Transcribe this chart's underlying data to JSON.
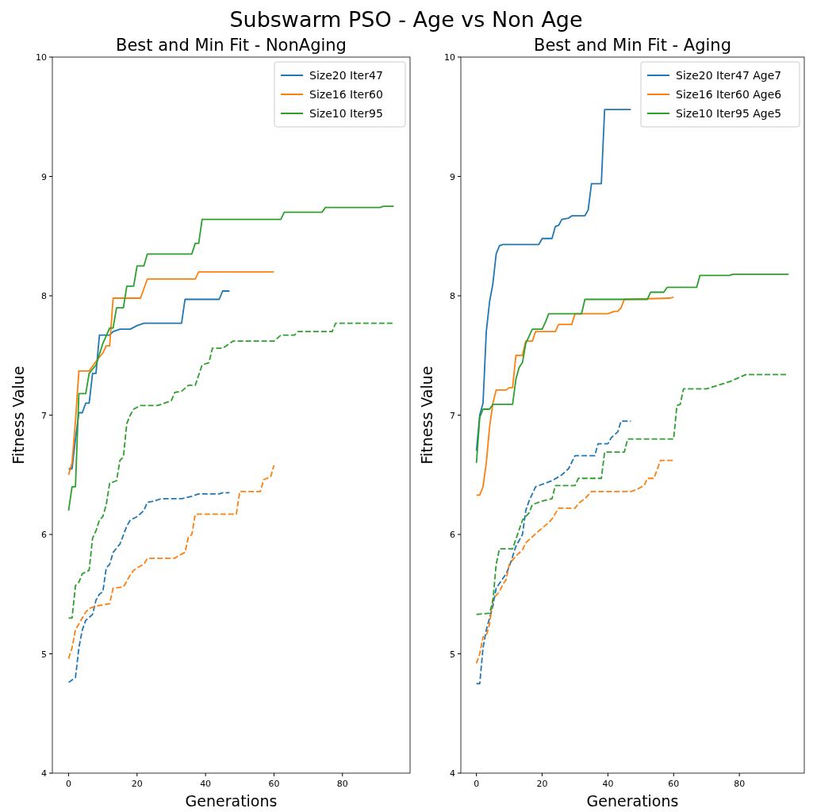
{
  "chart_data": [
    {
      "type": "line",
      "title": "Best and Min Fit - NonAging",
      "xlabel": "Generations",
      "ylabel": "Fitness Value",
      "annotations": [
        "Subswarm PSO - Age vs Non Age"
      ],
      "xlim": [
        -4.75,
        99.75
      ],
      "xticks": [
        0,
        20,
        40,
        60,
        80
      ],
      "ylim": [
        4,
        10
      ],
      "yticks": [
        4,
        5,
        6,
        7,
        8,
        9,
        10
      ],
      "legend": "top right",
      "grid": false,
      "marker": "none",
      "series": [
        {
          "name": "Size20 Iter47",
          "color": "#1f77b4",
          "line_style": "solid",
          "x": [
            0,
            1,
            2,
            3,
            4,
            5,
            6,
            7,
            8,
            9,
            12,
            13,
            15,
            18,
            20,
            22,
            33,
            34,
            44,
            45,
            47
          ],
          "values": [
            6.55,
            6.55,
            6.8,
            7.02,
            7.02,
            7.1,
            7.1,
            7.35,
            7.35,
            7.67,
            7.67,
            7.7,
            7.72,
            7.72,
            7.75,
            7.77,
            7.77,
            7.97,
            7.97,
            8.04,
            8.04
          ]
        },
        {
          "name": "Size16 Iter60",
          "color": "#ff7f0e",
          "line_style": "solid",
          "x": [
            0,
            1,
            2,
            3,
            6,
            8,
            10,
            11,
            12,
            13,
            21,
            23,
            37,
            38,
            60
          ],
          "values": [
            6.5,
            6.6,
            6.95,
            7.37,
            7.37,
            7.45,
            7.52,
            7.58,
            7.58,
            7.98,
            7.98,
            8.14,
            8.14,
            8.2,
            8.2
          ]
        },
        {
          "name": "Size10 Iter95",
          "color": "#2ca02c",
          "line_style": "solid",
          "x": [
            0,
            1,
            2,
            3,
            5,
            6,
            8,
            10,
            12,
            13,
            14,
            16,
            17,
            19,
            20,
            22,
            23,
            36,
            37,
            38,
            39,
            62,
            63,
            74,
            75,
            91,
            92,
            95
          ],
          "values": [
            6.2,
            6.4,
            6.4,
            7.18,
            7.18,
            7.35,
            7.42,
            7.6,
            7.73,
            7.73,
            7.9,
            7.9,
            8.08,
            8.08,
            8.25,
            8.25,
            8.35,
            8.35,
            8.44,
            8.44,
            8.64,
            8.64,
            8.7,
            8.7,
            8.74,
            8.74,
            8.75,
            8.75
          ]
        },
        {
          "color": "#1f77b4",
          "line_style": "dashed",
          "x": [
            0,
            1,
            2,
            3,
            4,
            5,
            7,
            8,
            9,
            10,
            11,
            12,
            13,
            15,
            17,
            18,
            20,
            22,
            23,
            25,
            27,
            33,
            36,
            38,
            44,
            45,
            47
          ],
          "values": [
            4.76,
            4.78,
            4.8,
            5.05,
            5.2,
            5.28,
            5.33,
            5.45,
            5.5,
            5.52,
            5.72,
            5.75,
            5.85,
            5.92,
            6.07,
            6.12,
            6.15,
            6.2,
            6.27,
            6.28,
            6.3,
            6.3,
            6.32,
            6.34,
            6.34,
            6.35,
            6.35
          ]
        },
        {
          "color": "#ff7f0e",
          "line_style": "dashed",
          "x": [
            0,
            1,
            2,
            3,
            5,
            6,
            8,
            12,
            13,
            16,
            18,
            19,
            20,
            22,
            23,
            31,
            32,
            34,
            35,
            36,
            37,
            49,
            50,
            56,
            57,
            59,
            60
          ],
          "values": [
            4.96,
            5.05,
            5.2,
            5.25,
            5.35,
            5.38,
            5.4,
            5.42,
            5.55,
            5.56,
            5.66,
            5.7,
            5.72,
            5.75,
            5.8,
            5.8,
            5.82,
            5.85,
            5.98,
            6.0,
            6.17,
            6.17,
            6.36,
            6.36,
            6.46,
            6.48,
            6.58
          ]
        },
        {
          "color": "#2ca02c",
          "line_style": "dashed",
          "x": [
            0,
            1,
            2,
            3,
            4,
            6,
            7,
            8,
            9,
            10,
            11,
            12,
            14,
            15,
            16,
            17,
            18,
            19,
            21,
            26,
            28,
            30,
            31,
            33,
            35,
            37,
            39,
            41,
            42,
            45,
            47,
            48,
            60,
            62,
            66,
            67,
            77,
            78,
            95
          ],
          "values": [
            5.3,
            5.3,
            5.57,
            5.6,
            5.67,
            5.7,
            5.97,
            6.03,
            6.12,
            6.15,
            6.25,
            6.43,
            6.45,
            6.62,
            6.65,
            6.93,
            7.0,
            7.05,
            7.08,
            7.08,
            7.1,
            7.12,
            7.19,
            7.2,
            7.25,
            7.25,
            7.42,
            7.44,
            7.56,
            7.56,
            7.6,
            7.62,
            7.62,
            7.67,
            7.67,
            7.7,
            7.7,
            7.77,
            7.77
          ]
        }
      ]
    },
    {
      "type": "line",
      "title": "Best and Min Fit - Aging",
      "xlabel": "Generations",
      "ylabel": "Fitness Value",
      "xlim": [
        -4.75,
        99.75
      ],
      "xticks": [
        0,
        20,
        40,
        60,
        80
      ],
      "ylim": [
        4,
        10
      ],
      "yticks": [
        4,
        5,
        6,
        7,
        8,
        9,
        10
      ],
      "legend": "top right",
      "grid": false,
      "marker": "none",
      "series": [
        {
          "name": "Size20 Iter47 Age7",
          "color": "#1f77b4",
          "line_style": "solid",
          "x": [
            0,
            1,
            2,
            3,
            4,
            5,
            6,
            7,
            8,
            19,
            20,
            23,
            24,
            25,
            26,
            28,
            29,
            33,
            34,
            35,
            38,
            39,
            47
          ],
          "values": [
            6.7,
            7.0,
            7.1,
            7.7,
            7.95,
            8.1,
            8.35,
            8.42,
            8.43,
            8.43,
            8.48,
            8.48,
            8.58,
            8.59,
            8.64,
            8.65,
            8.67,
            8.67,
            8.72,
            8.94,
            8.94,
            9.56,
            9.56
          ]
        },
        {
          "name": "Size16 Iter60 Age6",
          "color": "#ff7f0e",
          "line_style": "solid",
          "x": [
            0,
            1,
            2,
            3,
            4,
            5,
            6,
            9,
            10,
            11,
            12,
            14,
            15,
            17,
            18,
            24,
            25,
            29,
            30,
            40,
            42,
            43,
            44,
            45,
            59,
            60
          ],
          "values": [
            6.33,
            6.33,
            6.4,
            6.6,
            6.9,
            7.1,
            7.21,
            7.21,
            7.23,
            7.23,
            7.5,
            7.5,
            7.62,
            7.62,
            7.7,
            7.7,
            7.76,
            7.76,
            7.85,
            7.85,
            7.87,
            7.87,
            7.9,
            7.97,
            7.98,
            7.99
          ]
        },
        {
          "name": "Size10 Iter95 Age5",
          "color": "#2ca02c",
          "line_style": "solid",
          "x": [
            0,
            1,
            2,
            4,
            5,
            11,
            12,
            13,
            14,
            15,
            16,
            17,
            20,
            21,
            22,
            32,
            33,
            52,
            53,
            57,
            58,
            67,
            68,
            77,
            78,
            95
          ],
          "values": [
            6.6,
            6.98,
            7.05,
            7.05,
            7.09,
            7.09,
            7.3,
            7.4,
            7.44,
            7.6,
            7.66,
            7.72,
            7.72,
            7.78,
            7.85,
            7.85,
            7.97,
            7.97,
            8.03,
            8.03,
            8.07,
            8.07,
            8.17,
            8.17,
            8.18,
            8.18
          ]
        },
        {
          "color": "#1f77b4",
          "line_style": "dashed",
          "x": [
            0,
            1,
            2,
            3,
            5,
            6,
            9,
            10,
            12,
            14,
            15,
            16,
            18,
            21,
            23,
            26,
            28,
            30,
            36,
            37,
            40,
            41,
            43,
            44,
            47
          ],
          "values": [
            4.75,
            4.75,
            5.05,
            5.2,
            5.4,
            5.55,
            5.67,
            5.73,
            5.9,
            6.0,
            6.2,
            6.28,
            6.4,
            6.43,
            6.45,
            6.5,
            6.55,
            6.66,
            6.66,
            6.76,
            6.76,
            6.81,
            6.86,
            6.95,
            6.95
          ]
        },
        {
          "color": "#ff7f0e",
          "line_style": "dashed",
          "x": [
            0,
            1,
            2,
            3,
            4,
            5,
            7,
            8,
            9,
            10,
            12,
            14,
            15,
            17,
            19,
            22,
            23,
            25,
            30,
            31,
            33,
            35,
            47,
            49,
            51,
            52,
            54,
            56,
            60
          ],
          "values": [
            4.92,
            5.0,
            5.14,
            5.15,
            5.25,
            5.46,
            5.52,
            5.58,
            5.62,
            5.75,
            5.82,
            5.87,
            5.93,
            5.98,
            6.03,
            6.1,
            6.13,
            6.22,
            6.22,
            6.26,
            6.3,
            6.36,
            6.36,
            6.38,
            6.41,
            6.47,
            6.47,
            6.62,
            6.62
          ]
        },
        {
          "color": "#2ca02c",
          "line_style": "dashed",
          "x": [
            0,
            4,
            5,
            6,
            7,
            11,
            12,
            14,
            16,
            17,
            20,
            23,
            24,
            30,
            31,
            38,
            39,
            45,
            46,
            60,
            61,
            62,
            63,
            70,
            77,
            82,
            95
          ],
          "values": [
            5.33,
            5.34,
            5.44,
            5.75,
            5.88,
            5.88,
            5.96,
            6.12,
            6.18,
            6.25,
            6.28,
            6.3,
            6.41,
            6.41,
            6.47,
            6.47,
            6.69,
            6.69,
            6.8,
            6.8,
            7.08,
            7.09,
            7.22,
            7.22,
            7.28,
            7.34,
            7.34
          ]
        }
      ]
    }
  ]
}
